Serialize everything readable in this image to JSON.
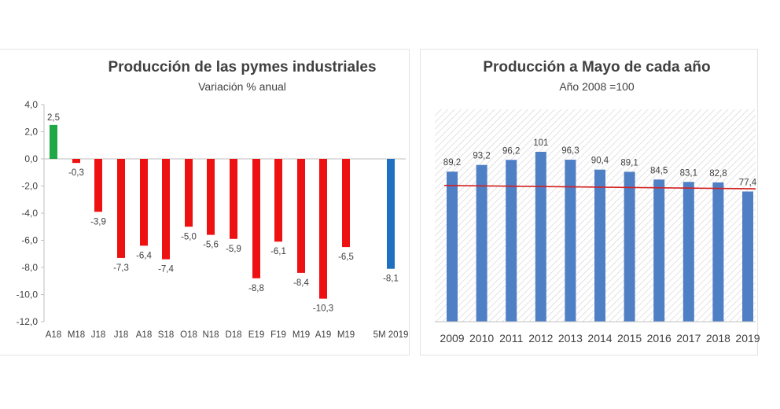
{
  "colors": {
    "positive": "#1fa845",
    "negative": "#ee1111",
    "highlight": "#1f70c1",
    "bars_right": "#4f7fc4",
    "reference_line": "#d42020",
    "hatch": "#d0d0d0"
  },
  "chart_data": [
    {
      "type": "bar",
      "title": "Producción de las pymes industriales",
      "subtitle": "Variación % anual",
      "categories": [
        "A18",
        "M18",
        "J18",
        "J18",
        "A18",
        "S18",
        "O18",
        "N18",
        "D18",
        "E19",
        "F19",
        "M19",
        "A19",
        "M19",
        "5M 2019"
      ],
      "values": [
        2.5,
        -0.3,
        -3.9,
        -7.3,
        -6.4,
        -7.4,
        -5.0,
        -5.6,
        -5.9,
        -8.8,
        -6.1,
        -8.4,
        -10.3,
        -6.5,
        -8.1
      ],
      "data_labels": [
        "2,5",
        "-0,3",
        "-3,9",
        "-7,3",
        "-6,4",
        "-7,4",
        "-5,0",
        "-5,6",
        "-5,9",
        "-8,8",
        "-6,1",
        "-8,4",
        "-10,3",
        "-6,5",
        "-8,1"
      ],
      "ylim": [
        -12,
        4
      ],
      "yticks": [
        "4,0",
        "2,0",
        "0,0",
        "-2,0",
        "-4,0",
        "-6,0",
        "-8,0",
        "-10,0",
        "-12,0"
      ],
      "ytick_values": [
        4,
        2,
        0,
        -2,
        -4,
        -6,
        -8,
        -10,
        -12
      ],
      "grid": false,
      "legend": "none"
    },
    {
      "type": "bar",
      "title": "Producción a Mayo de cada año",
      "subtitle": "Año 2008 =100",
      "categories": [
        "2009",
        "2010",
        "2011",
        "2012",
        "2013",
        "2014",
        "2015",
        "2016",
        "2017",
        "2018",
        "2019"
      ],
      "values": [
        89.2,
        93.2,
        96.2,
        101,
        96.3,
        90.4,
        89.1,
        84.5,
        83.1,
        82.8,
        77.4
      ],
      "data_labels": [
        "89,2",
        "93,2",
        "96,2",
        "101",
        "96,3",
        "90,4",
        "89,1",
        "84,5",
        "83,1",
        "82,8",
        "77,4"
      ],
      "reference_line": {
        "from": 81,
        "to": 79
      },
      "grid": false,
      "legend": "none"
    }
  ]
}
